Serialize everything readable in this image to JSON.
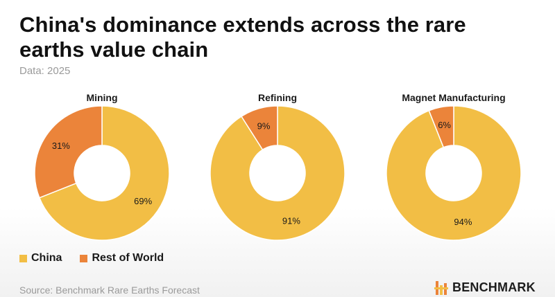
{
  "header": {
    "title": "China's dominance extends across the rare earths value chain",
    "subtitle": "Data: 2025"
  },
  "colors": {
    "china": "#F2BE45",
    "rest_of_world": "#EB843A"
  },
  "chart_data": [
    {
      "type": "pie",
      "donut": true,
      "title": "Mining",
      "series": [
        {
          "name": "China",
          "value": 69,
          "label": "69%"
        },
        {
          "name": "Rest of World",
          "value": 31,
          "label": "31%"
        }
      ]
    },
    {
      "type": "pie",
      "donut": true,
      "title": "Refining",
      "series": [
        {
          "name": "China",
          "value": 91,
          "label": "91%"
        },
        {
          "name": "Rest of World",
          "value": 9,
          "label": "9%"
        }
      ]
    },
    {
      "type": "pie",
      "donut": true,
      "title": "Magnet Manufacturing",
      "series": [
        {
          "name": "China",
          "value": 94,
          "label": "94%"
        },
        {
          "name": "Rest of World",
          "value": 6,
          "label": "6%"
        }
      ]
    }
  ],
  "legend": {
    "items": [
      "China",
      "Rest of World"
    ]
  },
  "footer": {
    "source": "Source: Benchmark Rare Earths Forecast",
    "brand": "BENCHMARK"
  }
}
